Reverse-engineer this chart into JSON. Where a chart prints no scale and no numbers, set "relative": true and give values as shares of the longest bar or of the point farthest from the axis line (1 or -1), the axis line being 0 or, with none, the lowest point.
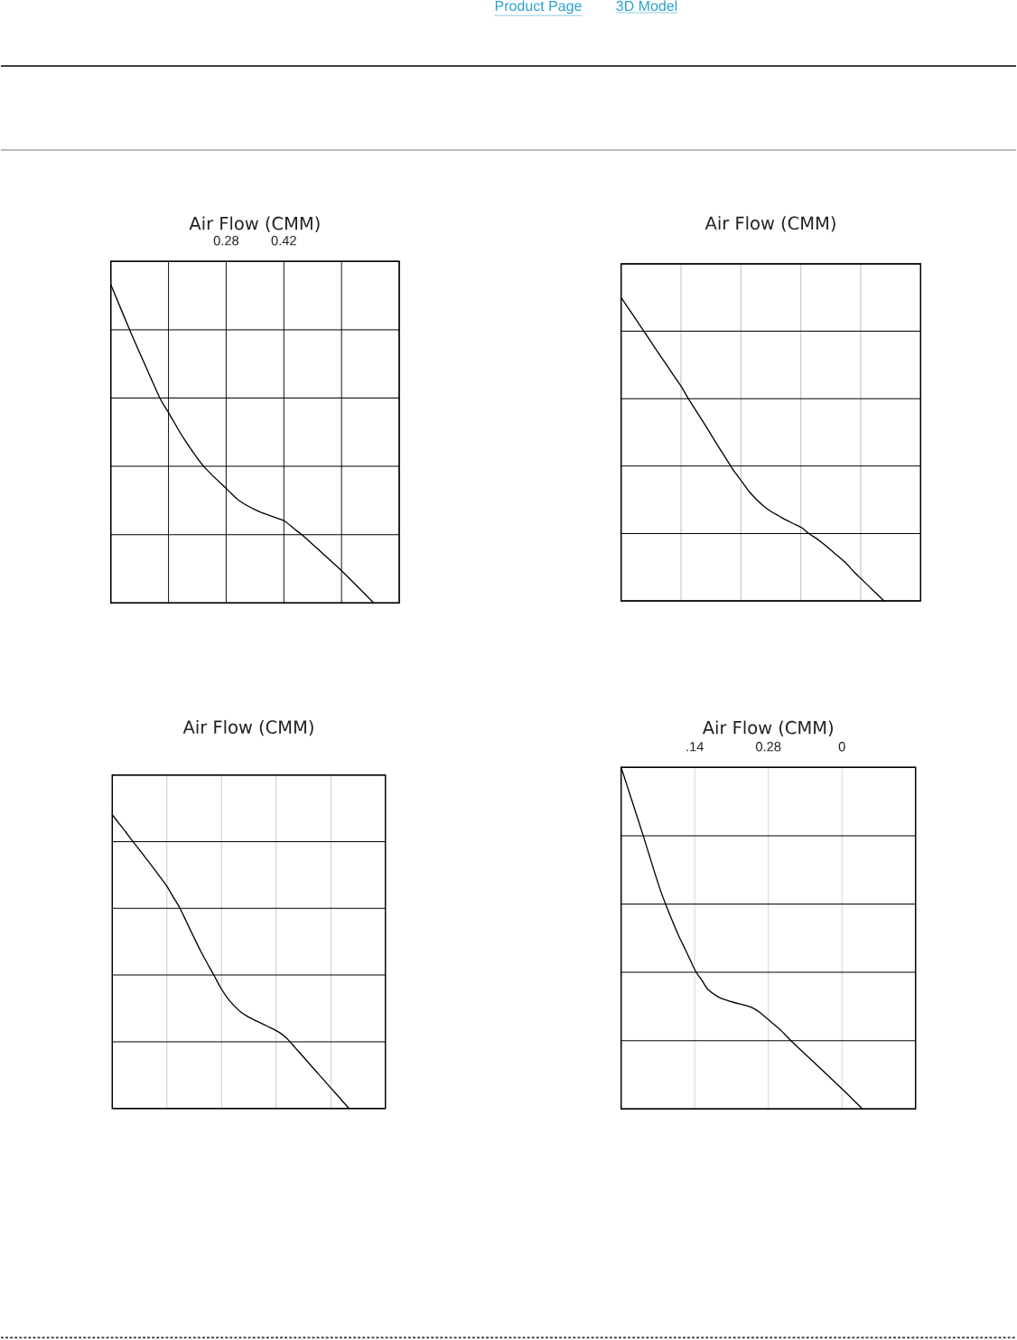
{
  "chart_data": [
    {
      "type": "line",
      "title": "Air Flow (CMM)",
      "annotations": [
        "Product Page",
        "3D Model"
      ],
      "x": [
        0,
        0.048,
        0.084,
        0.12,
        0.142,
        0.177,
        0.225,
        0.283,
        0.312,
        0.36,
        0.398,
        0.422,
        0.446,
        0.465,
        0.513,
        0.561,
        0.638
      ],
      "series": [
        {
          "color": "#000000",
          "values": [
            1,
            0.851,
            0.745,
            0.641,
            0.594,
            0.517,
            0.43,
            0.356,
            0.321,
            0.287,
            0.269,
            0.257,
            0.232,
            0.213,
            0.157,
            0.1,
            0
          ]
        }
      ],
      "relative": true,
      "xlim": [
        0,
        0.7
      ],
      "xticks": [
        {
          "value": 0,
          "label": null
        },
        {
          "value": 0.14,
          "label": null
        },
        {
          "value": 0.28,
          "label": "0.28"
        },
        {
          "value": 0.42,
          "label": "0.42"
        },
        {
          "value": 0.56,
          "label": null
        },
        {
          "value": 0.7,
          "label": null
        }
      ],
      "grid": true
    },
    {
      "type": "line",
      "title": "Air Flow (CMM)",
      "categories": [
        null,
        null,
        null,
        null,
        null,
        null,
        null,
        null,
        null,
        null,
        null,
        null,
        null,
        null,
        null,
        null,
        null,
        null,
        null,
        null,
        null,
        null,
        null,
        null,
        null,
        null,
        null,
        null,
        null,
        null,
        null,
        null,
        null,
        null,
        null,
        null
      ],
      "series": [
        {
          "color": "#000000",
          "values": [
            1,
            0.963,
            0.927,
            0.89,
            0.853,
            0.816,
            0.78,
            0.743,
            0.707,
            0.665,
            0.626,
            0.587,
            0.547,
            0.507,
            0.468,
            0.429,
            0.396,
            0.362,
            0.335,
            0.312,
            0.294,
            0.28,
            0.266,
            0.254,
            0.242,
            0.222,
            0.206,
            0.187,
            0.166,
            0.145,
            0.123,
            0.096,
            0.072,
            0.048,
            0.024,
            0
          ]
        }
      ],
      "relative": true,
      "grid": true
    },
    {
      "type": "line",
      "title": "Air Flow (CMM)",
      "categories": [
        null,
        null,
        null,
        null,
        null,
        null,
        null,
        null,
        null,
        null,
        null,
        null,
        null,
        null,
        null,
        null,
        null,
        null,
        null,
        null,
        null,
        null,
        null,
        null,
        null,
        null,
        null,
        null,
        null,
        null,
        null,
        null,
        null,
        null,
        null,
        null
      ],
      "series": [
        {
          "color": "#000000",
          "values": [
            1,
            0.97,
            0.941,
            0.91,
            0.881,
            0.851,
            0.821,
            0.79,
            0.759,
            0.72,
            0.682,
            0.634,
            0.586,
            0.539,
            0.496,
            0.455,
            0.412,
            0.377,
            0.35,
            0.328,
            0.313,
            0.301,
            0.29,
            0.279,
            0.268,
            0.254,
            0.234,
            0.208,
            0.182,
            0.156,
            0.13,
            0.104,
            0.078,
            0.052,
            0.026,
            0
          ]
        }
      ],
      "relative": true,
      "grid": true
    },
    {
      "type": "line",
      "title": "Air Flow (CMM)",
      "x": [
        0,
        0.023,
        0.042,
        0.062,
        0.073,
        0.085,
        0.108,
        0.123,
        0.141,
        0.154,
        0.165,
        0.185,
        0.198,
        0.212,
        0.242,
        0.254,
        0.265,
        0.288,
        0.304,
        0.323,
        0.365,
        0.42,
        0.459
      ],
      "series": [
        {
          "color": "#000000",
          "values": [
            1,
            0.891,
            0.8,
            0.701,
            0.648,
            0.598,
            0.512,
            0.464,
            0.405,
            0.376,
            0.35,
            0.328,
            0.32,
            0.313,
            0.301,
            0.293,
            0.281,
            0.251,
            0.23,
            0.2,
            0.139,
            0.059,
            0
          ]
        }
      ],
      "relative": true,
      "xlim": [
        0,
        0.56
      ],
      "xticks": [
        {
          "value": 0,
          "label": null
        },
        {
          "value": 0.14,
          "label": ".14"
        },
        {
          "value": 0.28,
          "label": "0.28"
        },
        {
          "value": 0.42,
          "label": "0"
        },
        {
          "value": 0.56,
          "label": null
        }
      ],
      "grid": true
    }
  ]
}
